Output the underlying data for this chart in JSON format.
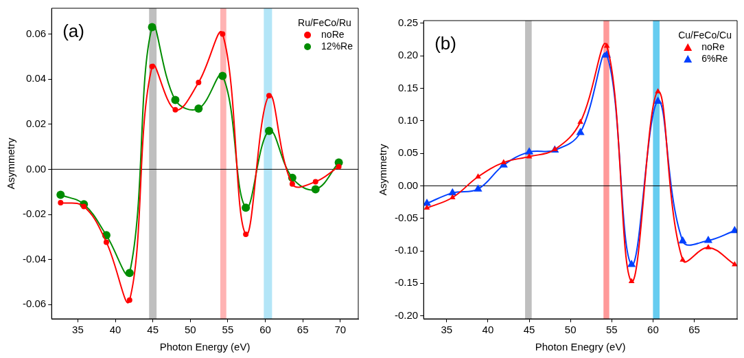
{
  "chart_data": [
    {
      "type": "line",
      "xlabel": "Photon Energy (eV)",
      "ylabel": "Asymmetry",
      "legend_title": "Ru/FeCo/Ru",
      "legend": "top right",
      "marker": "circle",
      "line_style": "solid",
      "grid": false,
      "x": [
        32.7,
        35.8,
        38.8,
        41.9,
        44.9,
        48.0,
        51.1,
        54.3,
        57.4,
        60.5,
        63.6,
        66.7,
        69.8
      ],
      "series": [
        {
          "name": "noRe",
          "color": "#ff0000",
          "values": [
            -0.0148,
            -0.0165,
            -0.0323,
            -0.058,
            0.0456,
            0.0264,
            0.0385,
            0.06,
            -0.0288,
            0.0326,
            -0.0065,
            -0.0055,
            0.0012
          ]
        },
        {
          "name": "12%Re",
          "color": "#008c00",
          "values": [
            -0.0113,
            -0.0155,
            -0.0292,
            -0.046,
            0.063,
            0.0307,
            0.0269,
            0.0414,
            -0.017,
            0.017,
            -0.0038,
            -0.0089,
            0.003
          ]
        }
      ],
      "xlim": [
        31.5,
        72.4
      ],
      "xticks": [
        35,
        40,
        45,
        50,
        55,
        60,
        65,
        70
      ],
      "ylim": [
        -0.0663,
        0.0714
      ],
      "yticks": [
        -0.06,
        -0.04,
        -0.02,
        {
          "value": 0,
          "label": "0.00"
        },
        0.02,
        0.04,
        0.06
      ],
      "ref_lines": [
        {
          "axis": "y",
          "value": 0,
          "label": null,
          "color": "#000000"
        }
      ],
      "bands": [
        {
          "axis": "x",
          "from": 44.5,
          "to": 45.5,
          "label": null,
          "color": "#bfbfbf"
        },
        {
          "axis": "x",
          "from": 54.0,
          "to": 54.8,
          "label": null,
          "color": "#ffb3b3"
        },
        {
          "axis": "x",
          "from": 59.8,
          "to": 60.9,
          "label": null,
          "color": "#b3e5f7"
        }
      ],
      "annotations": [
        "(a)"
      ]
    },
    {
      "type": "line",
      "xlabel": "Photon Enegry (eV)",
      "ylabel": "Asymmetry",
      "legend_title": "Cu/FeCo/Cu",
      "legend": "top right",
      "marker": "triangle",
      "line_style": "solid",
      "grid": false,
      "x": [
        32.6,
        35.7,
        38.8,
        41.9,
        45.0,
        48.1,
        51.2,
        54.4,
        57.4,
        60.6,
        63.6,
        66.7,
        69.9
      ],
      "series": [
        {
          "name": "noRe",
          "color": "#ff0000",
          "values": [
            -0.034,
            -0.018,
            0.014,
            0.036,
            0.045,
            0.056,
            0.098,
            0.215,
            -0.147,
            0.145,
            -0.114,
            -0.095,
            -0.121
          ]
        },
        {
          "name": "6%Re",
          "color": "#0040ff",
          "values": [
            -0.027,
            -0.011,
            -0.005,
            0.032,
            0.052,
            0.055,
            0.082,
            0.201,
            -0.121,
            0.13,
            -0.085,
            -0.084,
            -0.069
          ]
        }
      ],
      "xlim": [
        32.2,
        70.2
      ],
      "xticks": [
        35,
        40,
        45,
        50,
        55,
        60,
        65
      ],
      "ylim": [
        -0.2046,
        0.2542
      ],
      "yticks": [
        {
          "value": -0.2,
          "label": "-0.20"
        },
        -0.15,
        {
          "value": -0.1,
          "label": "-0.10"
        },
        -0.05,
        {
          "value": 0,
          "label": "0.00"
        },
        0.05,
        {
          "value": 0.1,
          "label": "0.10"
        },
        0.15,
        {
          "value": 0.2,
          "label": "0.20"
        },
        0.25
      ],
      "ref_lines": [
        {
          "axis": "y",
          "value": 0,
          "label": null,
          "color": "#000000"
        }
      ],
      "bands": [
        {
          "axis": "x",
          "from": 44.5,
          "to": 45.3,
          "label": null,
          "color": "#bfbfbf"
        },
        {
          "axis": "x",
          "from": 54.0,
          "to": 54.7,
          "label": null,
          "color": "#ff9999"
        },
        {
          "axis": "x",
          "from": 60.0,
          "to": 60.8,
          "label": null,
          "color": "#66ccf0"
        }
      ],
      "annotations": [
        "(b)"
      ]
    }
  ]
}
